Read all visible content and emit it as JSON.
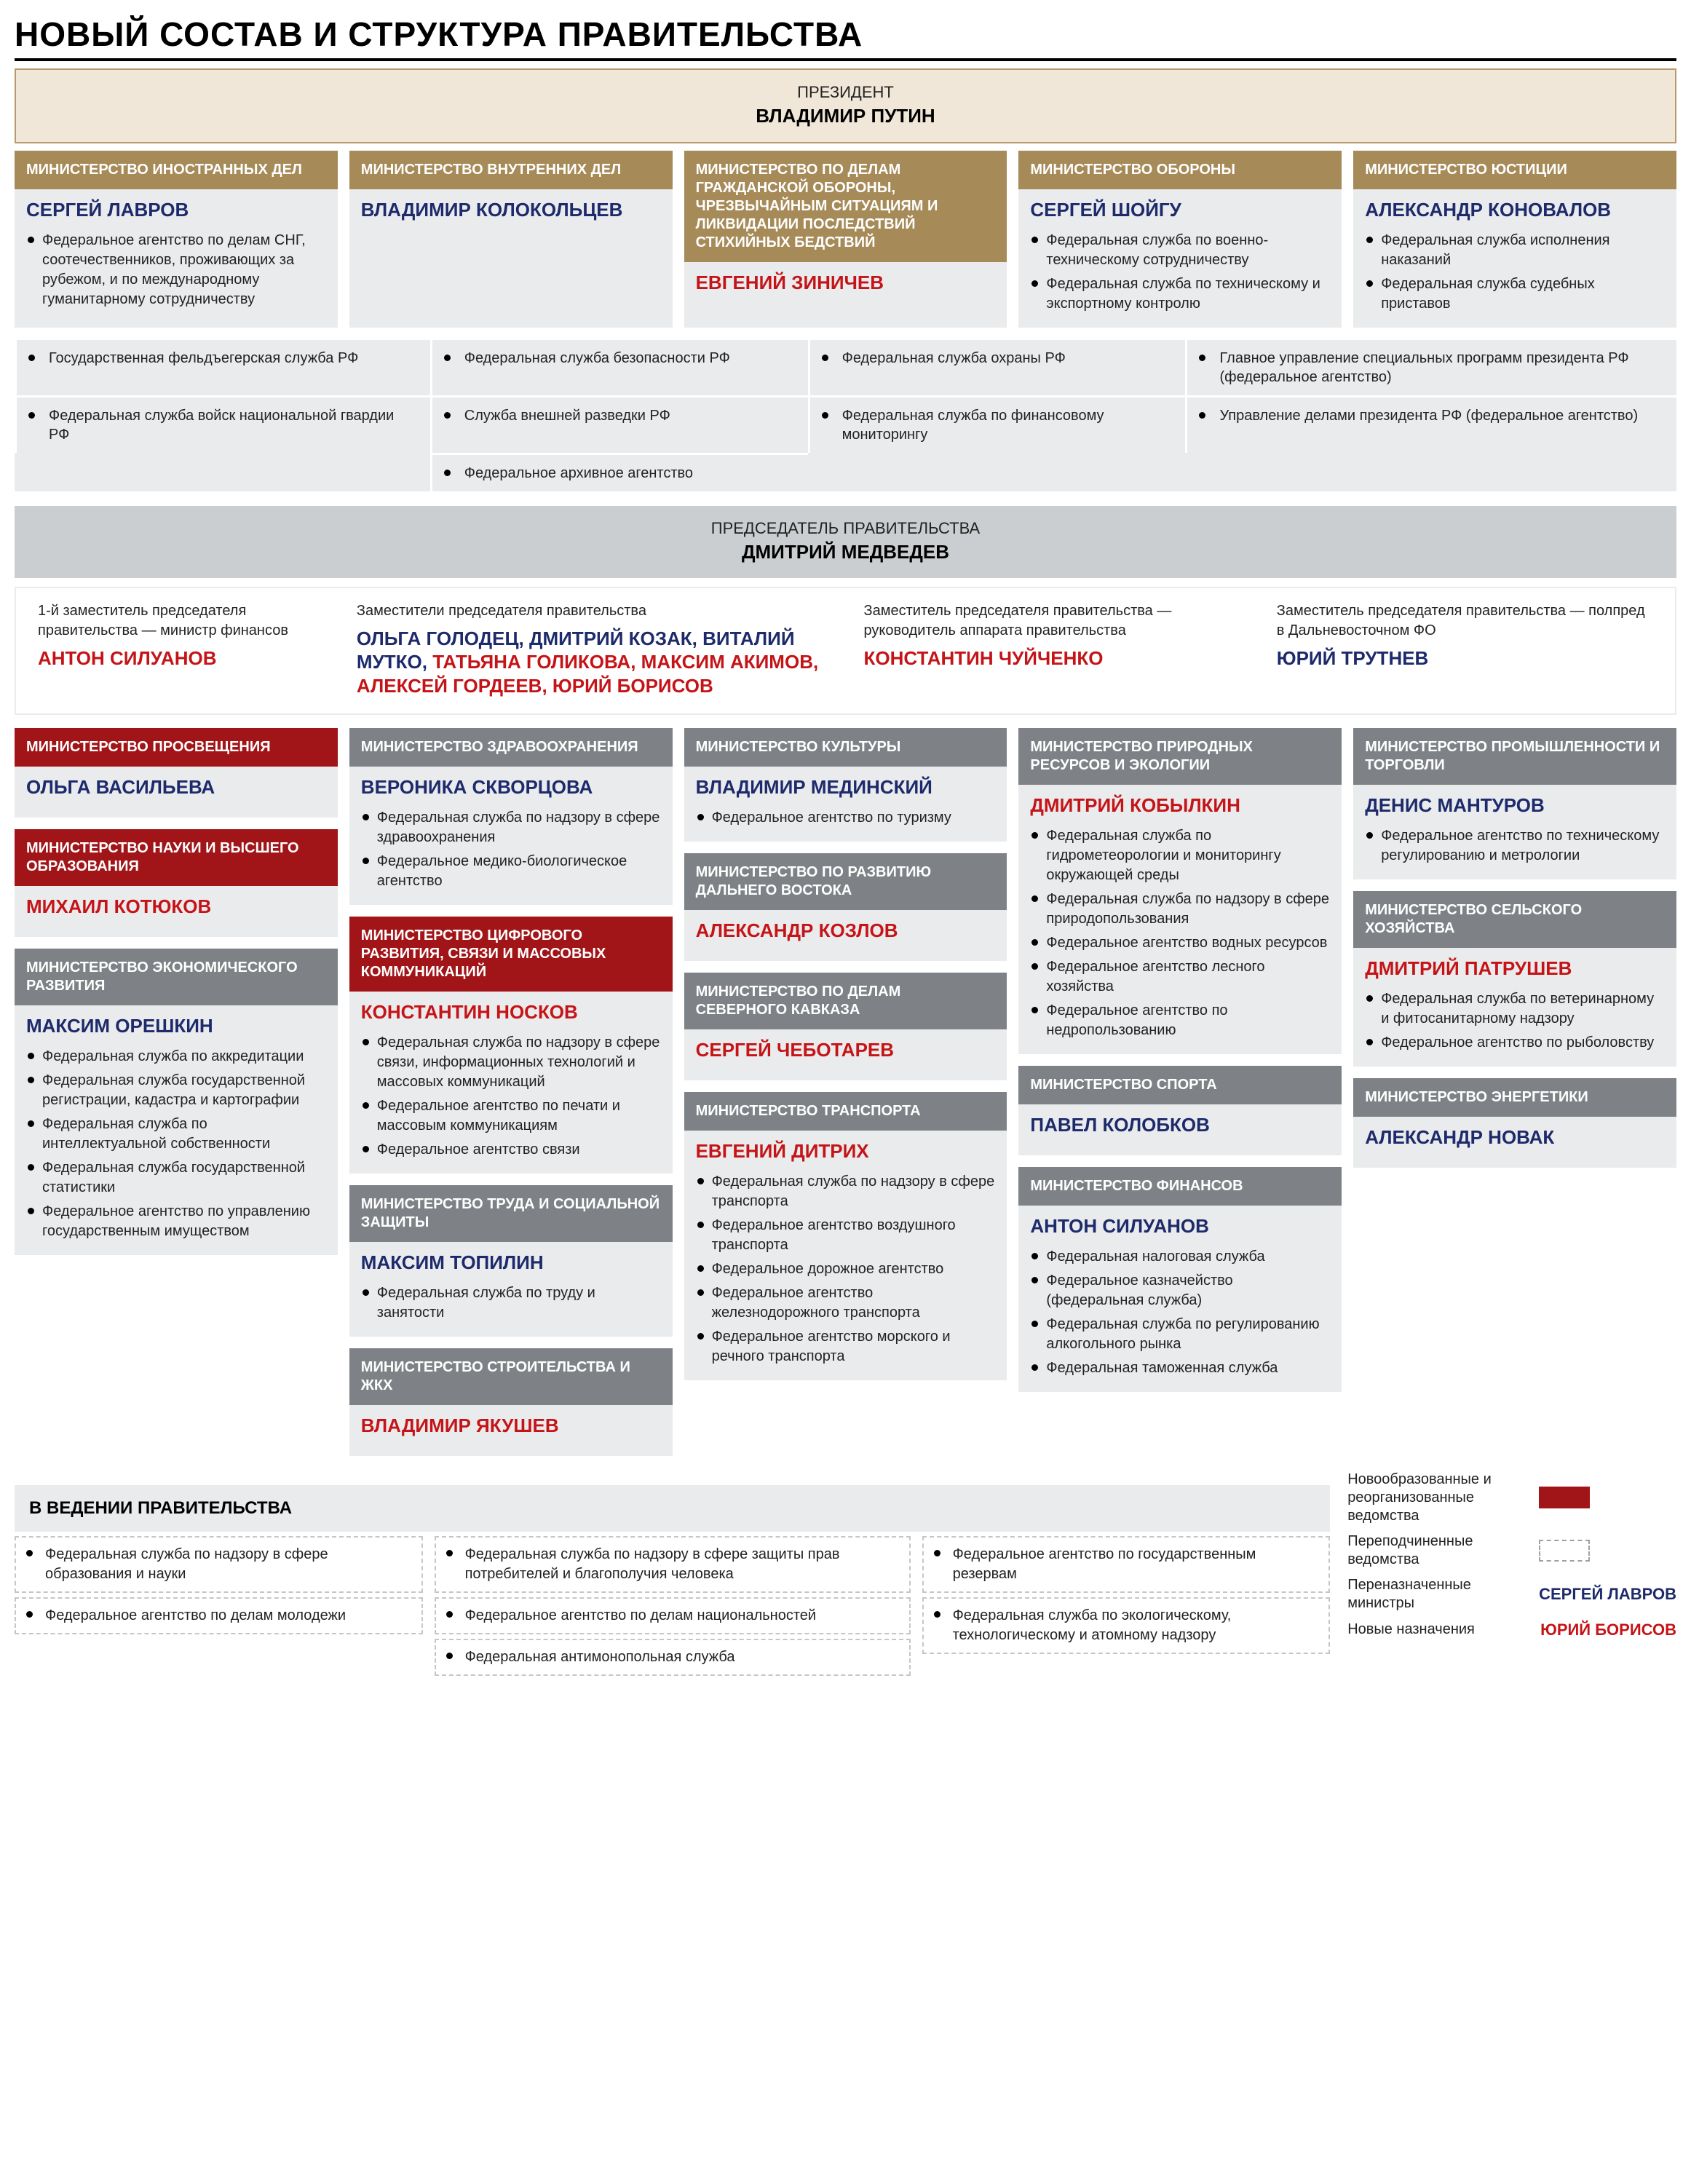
{
  "colors": {
    "hdr_gold": "#a68a58",
    "hdr_gray": "#7e8286",
    "hdr_maroon": "#a11518",
    "bg_card": "#eaebec",
    "name_blue": "#1d2a6b",
    "name_red": "#c51418"
  },
  "title": "НОВЫЙ СОСТАВ И СТРУКТУРА ПРАВИТЕЛЬСТВА",
  "president": {
    "role": "ПРЕЗИДЕНТ",
    "name": "ВЛАДИМИР ПУТИН"
  },
  "topMinistries": [
    {
      "hdr": "МИНИСТЕРСТВО ИНОСТРАННЫХ ДЕЛ",
      "hdrColor": "hdr_gold",
      "minister": "СЕРГЕЙ ЛАВРОВ",
      "mcolor": "blue",
      "subs": [
        "Федеральное агентство по делам СНГ, соотечественников, проживающих за рубежом, и по международному гуманитарному сотрудничеству"
      ]
    },
    {
      "hdr": "МИНИСТЕРСТВО ВНУТРЕННИХ ДЕЛ",
      "hdrColor": "hdr_gold",
      "minister": "ВЛАДИМИР КОЛОКОЛЬЦЕВ",
      "mcolor": "blue",
      "subs": []
    },
    {
      "hdr": "МИНИСТЕРСТВО ПО ДЕЛАМ ГРАЖДАНСКОЙ ОБОРОНЫ, ЧРЕЗВЫЧАЙНЫМ СИТУАЦИЯМ И ЛИКВИДАЦИИ ПОСЛЕДСТВИЙ СТИХИЙНЫХ БЕДСТВИЙ",
      "hdrColor": "hdr_gold",
      "minister": "ЕВГЕНИЙ ЗИНИЧЕВ",
      "mcolor": "red",
      "subs": []
    },
    {
      "hdr": "МИНИСТЕРСТВО ОБОРОНЫ",
      "hdrColor": "hdr_gold",
      "minister": "СЕРГЕЙ ШОЙГУ",
      "mcolor": "blue",
      "subs": [
        "Федеральная служба по военно-техническому сотрудничеству",
        "Федеральная служба по техническому и экспортному контролю"
      ]
    },
    {
      "hdr": "МИНИСТЕРСТВО ЮСТИЦИИ",
      "hdrColor": "hdr_gold",
      "minister": "АЛЕКСАНДР КОНОВАЛОВ",
      "mcolor": "blue",
      "subs": [
        "Федеральная служба исполнения наказаний",
        "Федеральная служба судебных приставов"
      ]
    }
  ],
  "presAgencies": [
    [
      "Государственная фельдъегерская служба РФ",
      "Федеральная служба войск национальной гвардии РФ"
    ],
    [
      "Федеральная служба безопасности РФ",
      "Служба внешней разведки РФ",
      "Федеральное архивное агентство"
    ],
    [
      "Федеральная служба охраны РФ",
      "Федеральная служба по финансовому мониторингу"
    ],
    [
      "Главное управление специальных программ президента РФ (федеральное агентство)",
      "Управление делами президента РФ (федеральное агентство)"
    ]
  ],
  "pm": {
    "role": "ПРЕДСЕДАТЕЛЬ ПРАВИТЕЛЬСТВА",
    "name": "ДМИТРИЙ МЕДВЕДЕВ"
  },
  "deputies": [
    {
      "role": "1-й заместитель председателя правительства — министр финансов",
      "names": [
        {
          "t": "АНТОН СИЛУАНОВ",
          "c": "red"
        }
      ]
    },
    {
      "role": "Заместители председателя правительства",
      "names": [
        {
          "t": "ОЛЬГА ГОЛОДЕЦ, ",
          "c": "blue"
        },
        {
          "t": "ДМИТРИЙ КОЗАК, ",
          "c": "blue"
        },
        {
          "t": "ВИТАЛИЙ МУТКО, ",
          "c": "blue"
        },
        {
          "t": "ТАТЬЯНА ГОЛИКОВА, ",
          "c": "red"
        },
        {
          "t": "МАКСИМ АКИМОВ, ",
          "c": "red"
        },
        {
          "t": "АЛЕКСЕЙ ГОРДЕЕВ, ",
          "c": "red"
        },
        {
          "t": "ЮРИЙ БОРИСОВ",
          "c": "red"
        }
      ]
    },
    {
      "role": "Заместитель председателя правительства — руководитель аппарата правительства",
      "names": [
        {
          "t": "КОНСТАНТИН ЧУЙЧЕНКО",
          "c": "red"
        }
      ]
    },
    {
      "role": "Заместитель председателя правительства — полпред в Дальневосточном ФО",
      "names": [
        {
          "t": "ЮРИЙ ТРУТНЕВ",
          "c": "blue"
        }
      ]
    }
  ],
  "columns": [
    [
      {
        "hdr": "МИНИСТЕРСТВО ПРОСВЕЩЕНИЯ",
        "hdrColor": "hdr_maroon",
        "minister": "ОЛЬГА ВАСИЛЬЕВА",
        "mcolor": "blue",
        "subs": []
      },
      {
        "hdr": "МИНИСТЕРСТВО НАУКИ И ВЫСШЕГО ОБРАЗОВАНИЯ",
        "hdrColor": "hdr_maroon",
        "minister": "МИХАИЛ КОТЮКОВ",
        "mcolor": "red",
        "subs": []
      },
      {
        "hdr": "МИНИСТЕРСТВО ЭКОНОМИЧЕСКОГО РАЗВИТИЯ",
        "hdrColor": "hdr_gray",
        "minister": "МАКСИМ ОРЕШКИН",
        "mcolor": "blue",
        "subs": [
          "Федеральная служба по аккредитации",
          "Федеральная служба государственной регистрации, кадастра и картографии",
          "Федеральная служба по интеллектуальной собственности",
          "Федеральная служба государственной статистики",
          "Федеральное агентство по управлению государственным имуществом"
        ]
      }
    ],
    [
      {
        "hdr": "МИНИСТЕРСТВО ЗДРАВООХРАНЕНИЯ",
        "hdrColor": "hdr_gray",
        "minister": "ВЕРОНИКА СКВОРЦОВА",
        "mcolor": "blue",
        "subs": [
          "Федеральная служба по надзору в сфере здравоохранения",
          "Федеральное медико-биологическое агентство"
        ]
      },
      {
        "hdr": "МИНИСТЕРСТВО ЦИФРОВОГО РАЗВИТИЯ, СВЯЗИ И МАССОВЫХ КОММУНИКАЦИЙ",
        "hdrColor": "hdr_maroon",
        "minister": "КОНСТАНТИН НОСКОВ",
        "mcolor": "red",
        "subs": [
          "Федеральная служба по надзору в сфере связи, информационных технологий и массовых коммуникаций",
          "Федеральное агентство по печати и массовым коммуникациям",
          "Федеральное агентство связи"
        ]
      },
      {
        "hdr": "МИНИСТЕРСТВО ТРУДА И СОЦИАЛЬНОЙ ЗАЩИТЫ",
        "hdrColor": "hdr_gray",
        "minister": "МАКСИМ ТОПИЛИН",
        "mcolor": "blue",
        "subs": [
          "Федеральная служба по труду и занятости"
        ]
      },
      {
        "hdr": "МИНИСТЕРСТВО СТРОИТЕЛЬСТВА И ЖКХ",
        "hdrColor": "hdr_gray",
        "minister": "ВЛАДИМИР ЯКУШЕВ",
        "mcolor": "red",
        "subs": []
      }
    ],
    [
      {
        "hdr": "МИНИСТЕРСТВО КУЛЬТУРЫ",
        "hdrColor": "hdr_gray",
        "minister": "ВЛАДИМИР МЕДИНСКИЙ",
        "mcolor": "blue",
        "subs": [
          "Федеральное агентство по туризму"
        ]
      },
      {
        "hdr": "МИНИСТЕРСТВО ПО РАЗВИТИЮ ДАЛЬНЕГО ВОСТОКА",
        "hdrColor": "hdr_gray",
        "minister": "АЛЕКСАНДР КОЗЛОВ",
        "mcolor": "red",
        "subs": []
      },
      {
        "hdr": "МИНИСТЕРСТВО ПО ДЕЛАМ СЕВЕРНОГО КАВКАЗА",
        "hdrColor": "hdr_gray",
        "minister": "СЕРГЕЙ ЧЕБОТАРЕВ",
        "mcolor": "red",
        "subs": []
      },
      {
        "hdr": "МИНИСТЕРСТВО ТРАНСПОРТА",
        "hdrColor": "hdr_gray",
        "minister": "ЕВГЕНИЙ ДИТРИХ",
        "mcolor": "red",
        "subs": [
          "Федеральная служба по надзору в сфере транспорта",
          "Федеральное агентство воздушного транспорта",
          "Федеральное дорожное агентство",
          "Федеральное агентство железнодорожного транспорта",
          "Федеральное агентство морского и речного транспорта"
        ]
      }
    ],
    [
      {
        "hdr": "МИНИСТЕРСТВО ПРИРОДНЫХ РЕСУРСОВ И ЭКОЛОГИИ",
        "hdrColor": "hdr_gray",
        "minister": "ДМИТРИЙ КОБЫЛКИН",
        "mcolor": "red",
        "subs": [
          "Федеральная служба по гидрометеорологии и мониторингу окружающей среды",
          "Федеральная служба по надзору в сфере природопользования",
          "Федеральное агентство водных ресурсов",
          "Федеральное агентство лесного хозяйства",
          "Федеральное агентство по недропользованию"
        ]
      },
      {
        "hdr": "МИНИСТЕРСТВО СПОРТА",
        "hdrColor": "hdr_gray",
        "minister": "ПАВЕЛ КОЛОБКОВ",
        "mcolor": "blue",
        "subs": []
      },
      {
        "hdr": "МИНИСТЕРСТВО ФИНАНСОВ",
        "hdrColor": "hdr_gray",
        "minister": "АНТОН СИЛУАНОВ",
        "mcolor": "blue",
        "subs": [
          "Федеральная налоговая служба",
          "Федеральное казначейство (федеральная служба)",
          "Федеральная служба по регулированию алкогольного рынка",
          "Федеральная таможенная служба"
        ]
      }
    ],
    [
      {
        "hdr": "МИНИСТЕРСТВО ПРОМЫШЛЕННОСТИ И ТОРГОВЛИ",
        "hdrColor": "hdr_gray",
        "minister": "ДЕНИС МАНТУРОВ",
        "mcolor": "blue",
        "subs": [
          "Федеральное агентство по техническому регулированию и метрологии"
        ]
      },
      {
        "hdr": "МИНИСТЕРСТВО СЕЛЬСКОГО ХОЗЯЙСТВА",
        "hdrColor": "hdr_gray",
        "minister": "ДМИТРИЙ ПАТРУШЕВ",
        "mcolor": "red",
        "subs": [
          "Федеральная служба по ветеринарному и фитосанитарному надзору",
          "Федеральное агентство по рыболовству"
        ]
      },
      {
        "hdr": "МИНИСТЕРСТВО ЭНЕРГЕТИКИ",
        "hdrColor": "hdr_gray",
        "minister": "АЛЕКСАНДР НОВАК",
        "mcolor": "blue",
        "subs": []
      }
    ]
  ],
  "govSectionTitle": "В ВЕДЕНИИ ПРАВИТЕЛЬСТВА",
  "govAgencies": [
    [
      "Федеральная служба по надзору в сфере образования и науки",
      "Федеральное агентство по делам молодежи"
    ],
    [
      "Федеральная служба по надзору в сфере защиты прав потребителей и благополучия человека",
      "Федеральное агентство по делам национальностей",
      "Федеральная антимонопольная служба"
    ],
    [
      "Федеральное агентство по государственным резервам",
      "Федеральная служба по экологическому, технологическому и атомному надзору"
    ]
  ],
  "legend": {
    "l1": "Новообразованные и реорганизованные ведомства",
    "l2": "Переподчиненные ведомства",
    "l3": "Переназначенные министры",
    "l3name": "СЕРГЕЙ ЛАВРОВ",
    "l4": "Новые назначения",
    "l4name": "ЮРИЙ БОРИСОВ"
  }
}
